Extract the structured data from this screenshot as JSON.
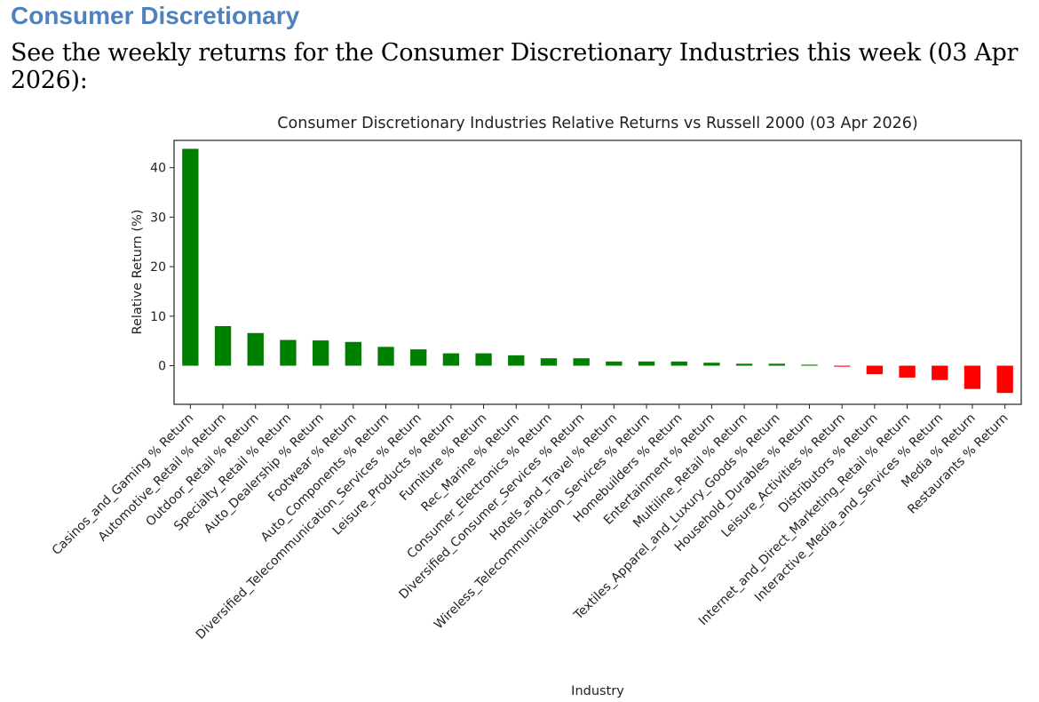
{
  "page": {
    "heading": "Consumer Discretionary",
    "intro": "See the weekly returns for the Consumer Discretionary Industries this week (03 Apr 2026):"
  },
  "chart_data": {
    "type": "bar",
    "title": "Consumer Discretionary Industries Relative Returns vs Russell 2000 (03 Apr 2026)",
    "xlabel": "Industry",
    "ylabel": "Relative Return (%)",
    "ylim": [
      -7.8,
      45.5
    ],
    "yticks": [
      0,
      10,
      20,
      30,
      40
    ],
    "grid": false,
    "positive_color": "#008000",
    "negative_color": "#FF0000",
    "categories": [
      "Casinos_and_Gaming % Return",
      "Automotive_Retail % Return",
      "Outdoor_Retail % Return",
      "Specialty_Retail % Return",
      "Auto_Dealership % Return",
      "Footwear % Return",
      "Auto_Components % Return",
      "Diversified_Telecommunication_Services % Return",
      "Leisure_Products % Return",
      "Furniture % Return",
      "Rec_Marine % Return",
      "Consumer_Electronics % Return",
      "Diversified_Consumer_Services % Return",
      "Hotels_and_Travel % Return",
      "Wireless_Telecommunication_Services % Return",
      "Homebuilders % Return",
      "Entertainment % Return",
      "Multiline_Retail % Return",
      "Textiles_Apparel_and_Luxury_Goods % Return",
      "Household_Durables % Return",
      "Leisure_Activities % Return",
      "Distributors % Return",
      "Internet_and_Direct_Marketing_Retail % Return",
      "Interactive_Media_and_Services % Return",
      "Media % Return",
      "Restaurants % Return"
    ],
    "values": [
      43.8,
      8.0,
      6.6,
      5.2,
      5.1,
      4.8,
      3.8,
      3.3,
      2.5,
      2.5,
      2.1,
      1.5,
      1.5,
      0.85,
      0.85,
      0.85,
      0.6,
      0.4,
      0.4,
      0.2,
      -0.2,
      -1.7,
      -2.4,
      -2.9,
      -4.7,
      -5.5
    ]
  }
}
